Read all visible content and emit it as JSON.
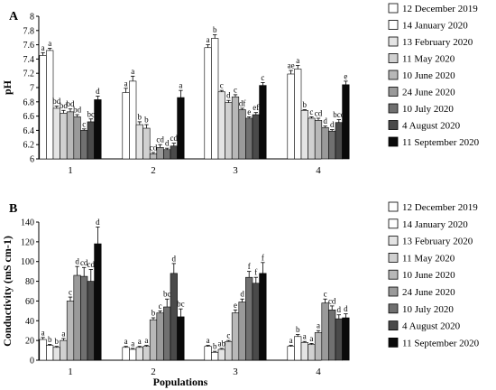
{
  "chart_data": [
    {
      "type": "bar",
      "panel_label": "A",
      "ylabel": "pH",
      "xlabel": "",
      "ylim": [
        6,
        8
      ],
      "yticks": [
        "6",
        "6.2",
        "6.4",
        "6.6",
        "6.8",
        "7",
        "7.2",
        "7.4",
        "7.6",
        "7.8",
        "8"
      ],
      "categories": [
        "1",
        "2",
        "3",
        "4"
      ],
      "grid": false,
      "legend_position": "right",
      "series": [
        {
          "name": "12 December 2019",
          "color": "#ffffff",
          "values": [
            7.45,
            6.93,
            7.56,
            7.19
          ],
          "errors": [
            0.04,
            0.06,
            0.04,
            0.05
          ],
          "letters": [
            "a",
            "a",
            "a",
            "ae"
          ]
        },
        {
          "name": "14 January 2020",
          "color": "#ffffff",
          "values": [
            7.52,
            7.09,
            7.69,
            7.26
          ],
          "errors": [
            0.03,
            0.07,
            0.05,
            0.05
          ],
          "letters": [
            "a",
            "a",
            "b",
            "a"
          ]
        },
        {
          "name": "13 February 2020",
          "color": "#e4e4e4",
          "values": [
            6.71,
            6.48,
            6.94,
            6.68
          ],
          "errors": [
            0.03,
            0.04,
            0.02,
            0.01
          ],
          "letters": [
            "bd",
            "b",
            "c",
            "b"
          ]
        },
        {
          "name": "11 May 2020",
          "color": "#d0d0d0",
          "values": [
            6.64,
            6.43,
            6.79,
            6.57
          ],
          "errors": [
            0.04,
            0.05,
            0.03,
            0.02
          ],
          "letters": [
            "bd",
            "b",
            "d",
            "c"
          ]
        },
        {
          "name": "10 June 2020",
          "color": "#b8b8b8",
          "values": [
            6.66,
            6.07,
            6.87,
            6.54
          ],
          "errors": [
            0.04,
            0.02,
            0.03,
            0.03
          ],
          "letters": [
            "bd",
            "cd",
            "c",
            "cd"
          ]
        },
        {
          "name": "24 June 2020",
          "color": "#9a9a9a",
          "values": [
            6.59,
            6.16,
            6.69,
            6.44
          ],
          "errors": [
            0.03,
            0.04,
            0.02,
            0.02
          ],
          "letters": [
            "bd",
            "cd",
            "df",
            "d"
          ]
        },
        {
          "name": "10 July 2020",
          "color": "#707070",
          "values": [
            6.4,
            6.13,
            6.57,
            6.39
          ],
          "errors": [
            0.02,
            0.02,
            0.02,
            0.02
          ],
          "letters": [
            "c",
            "d",
            "e",
            "d"
          ]
        },
        {
          "name": "4 August 2020",
          "color": "#4a4a4a",
          "values": [
            6.52,
            6.18,
            6.62,
            6.51
          ],
          "errors": [
            0.04,
            0.04,
            0.03,
            0.04
          ],
          "letters": [
            "bc",
            "cd",
            "ef",
            "bcd"
          ]
        },
        {
          "name": "11 September 2020",
          "color": "#0a0a0a",
          "values": [
            6.83,
            6.86,
            7.03,
            7.04
          ],
          "errors": [
            0.05,
            0.1,
            0.04,
            0.05
          ],
          "letters": [
            "d",
            "a",
            "c",
            "e"
          ]
        }
      ]
    },
    {
      "type": "bar",
      "panel_label": "B",
      "ylabel": "Conductivity (mS cm-1)",
      "xlabel": "Populations",
      "ylim": [
        0,
        140
      ],
      "yticks": [
        "0",
        "20",
        "40",
        "60",
        "80",
        "100",
        "120",
        "140"
      ],
      "categories": [
        "1",
        "2",
        "3",
        "4"
      ],
      "grid": false,
      "legend_position": "right",
      "series": [
        {
          "name": "12 December 2019",
          "color": "#ffffff",
          "values": [
            21,
            13,
            14,
            14
          ],
          "errors": [
            2,
            1,
            1,
            1
          ],
          "letters": [
            "a",
            "a",
            "a",
            "a"
          ]
        },
        {
          "name": "14 January 2020",
          "color": "#ffffff",
          "values": [
            15,
            11,
            8,
            24
          ],
          "errors": [
            1,
            1,
            1,
            2
          ],
          "letters": [
            "b",
            "a",
            "b",
            "b"
          ]
        },
        {
          "name": "13 February 2020",
          "color": "#e4e4e4",
          "values": [
            13,
            13,
            11,
            18
          ],
          "errors": [
            1,
            1,
            1,
            1
          ],
          "letters": [
            "b",
            "a",
            "ab",
            "a"
          ]
        },
        {
          "name": "11 May 2020",
          "color": "#d0d0d0",
          "values": [
            20,
            14,
            19,
            16
          ],
          "errors": [
            2,
            1,
            1,
            1
          ],
          "letters": [
            "a",
            "a",
            "c",
            "a"
          ]
        },
        {
          "name": "10 June 2020",
          "color": "#b8b8b8",
          "values": [
            60,
            41,
            48,
            28
          ],
          "errors": [
            4,
            2,
            3,
            2
          ],
          "letters": [
            "c",
            "b",
            "e",
            "a"
          ]
        },
        {
          "name": "24 June 2020",
          "color": "#9a9a9a",
          "values": [
            86,
            48,
            59,
            58
          ],
          "errors": [
            9,
            2,
            3,
            4
          ],
          "letters": [
            "d",
            "c",
            "d",
            "c"
          ]
        },
        {
          "name": "10 July 2020",
          "color": "#707070",
          "values": [
            85,
            54,
            84,
            51
          ],
          "errors": [
            9,
            8,
            6,
            4
          ],
          "letters": [
            "cd",
            "bc",
            "f",
            "cd"
          ]
        },
        {
          "name": "4 August 2020",
          "color": "#4a4a4a",
          "values": [
            80,
            88,
            78,
            42
          ],
          "errors": [
            12,
            10,
            6,
            4
          ],
          "letters": [
            "cd",
            "d",
            "f",
            "d"
          ]
        },
        {
          "name": "11 September 2020",
          "color": "#0a0a0a",
          "values": [
            118,
            44,
            88,
            43
          ],
          "errors": [
            17,
            8,
            11,
            4
          ],
          "letters": [
            "d",
            "bc",
            "f",
            "d"
          ]
        }
      ]
    }
  ]
}
